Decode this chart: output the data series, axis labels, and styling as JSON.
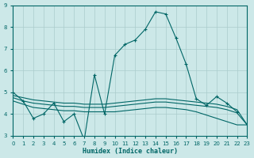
{
  "xlabel": "Humidex (Indice chaleur)",
  "xlim": [
    0,
    23
  ],
  "ylim": [
    3,
    9
  ],
  "yticks": [
    3,
    4,
    5,
    6,
    7,
    8,
    9
  ],
  "xticks": [
    0,
    1,
    2,
    3,
    4,
    5,
    6,
    7,
    8,
    9,
    10,
    11,
    12,
    13,
    14,
    15,
    16,
    17,
    18,
    19,
    20,
    21,
    22,
    23
  ],
  "bg_color": "#cce8e8",
  "grid_color": "#aacccc",
  "line_color": "#006666",
  "line1": {
    "x": [
      0,
      1,
      2,
      3,
      4,
      5,
      6,
      7,
      8,
      9,
      10,
      11,
      12,
      13,
      14,
      15,
      16,
      17,
      18,
      19,
      20,
      21,
      22
    ],
    "y": [
      5.0,
      4.6,
      3.8,
      4.0,
      4.5,
      3.65,
      4.0,
      2.8,
      5.8,
      4.0,
      6.7,
      7.2,
      7.4,
      7.9,
      8.7,
      8.6,
      7.5,
      6.3,
      4.7,
      4.4,
      4.8,
      4.5,
      4.1
    ]
  },
  "line2": {
    "x": [
      0,
      1,
      2,
      3,
      4,
      5,
      6,
      7,
      8,
      9,
      10,
      11,
      12,
      13,
      14,
      15,
      16,
      17,
      18,
      19,
      20,
      21,
      22,
      23
    ],
    "y": [
      4.85,
      4.75,
      4.65,
      4.6,
      4.55,
      4.5,
      4.5,
      4.45,
      4.45,
      4.45,
      4.5,
      4.55,
      4.6,
      4.65,
      4.7,
      4.7,
      4.65,
      4.6,
      4.55,
      4.5,
      4.45,
      4.35,
      4.2,
      3.5
    ]
  },
  "line3": {
    "x": [
      0,
      1,
      2,
      3,
      4,
      5,
      6,
      7,
      8,
      9,
      10,
      11,
      12,
      13,
      14,
      15,
      16,
      17,
      18,
      19,
      20,
      21,
      22,
      23
    ],
    "y": [
      4.75,
      4.6,
      4.5,
      4.45,
      4.4,
      4.35,
      4.35,
      4.3,
      4.3,
      4.3,
      4.35,
      4.4,
      4.45,
      4.5,
      4.55,
      4.55,
      4.5,
      4.45,
      4.4,
      4.35,
      4.3,
      4.2,
      4.05,
      3.5
    ]
  },
  "line4": {
    "x": [
      0,
      1,
      2,
      3,
      4,
      5,
      6,
      7,
      8,
      9,
      10,
      11,
      12,
      13,
      14,
      15,
      16,
      17,
      18,
      19,
      20,
      21,
      22,
      23
    ],
    "y": [
      4.6,
      4.45,
      4.3,
      4.25,
      4.2,
      4.15,
      4.15,
      4.1,
      4.1,
      4.1,
      4.1,
      4.15,
      4.2,
      4.25,
      4.3,
      4.3,
      4.25,
      4.2,
      4.1,
      3.95,
      3.8,
      3.65,
      3.5,
      3.5
    ]
  }
}
